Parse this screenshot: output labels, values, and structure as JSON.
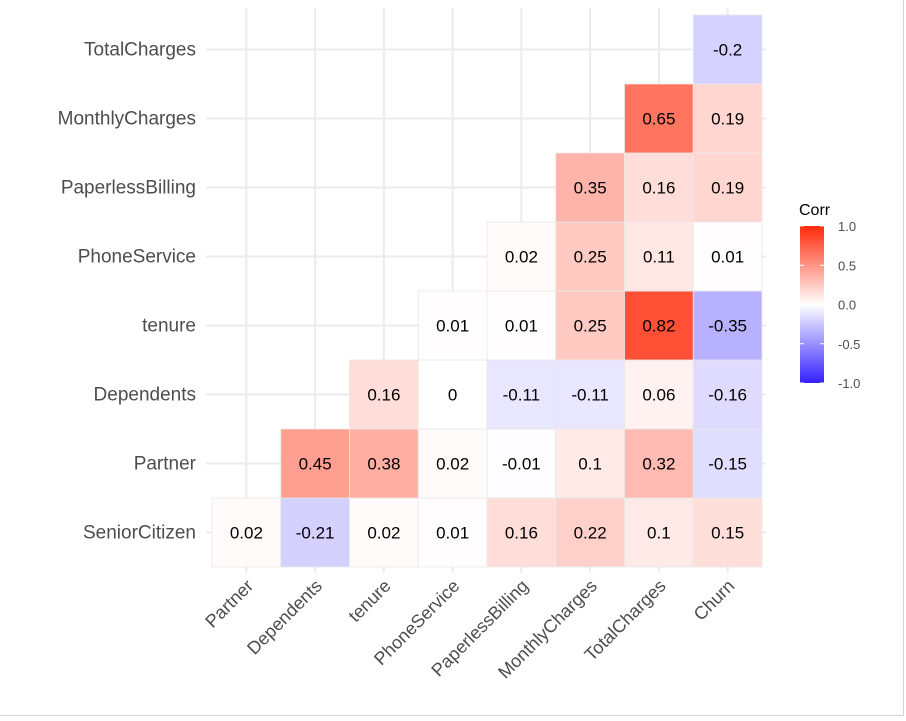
{
  "chart_data": {
    "type": "heatmap",
    "x_categories": [
      "Partner",
      "Dependents",
      "tenure",
      "PhoneService",
      "PaperlessBilling",
      "MonthlyCharges",
      "TotalCharges",
      "Churn"
    ],
    "y_categories": [
      "SeniorCitizen",
      "Partner",
      "Dependents",
      "tenure",
      "PhoneService",
      "PaperlessBilling",
      "MonthlyCharges",
      "TotalCharges"
    ],
    "cells": [
      {
        "x": "Partner",
        "y": "SeniorCitizen",
        "value": 0.02,
        "label": "0.02"
      },
      {
        "x": "Dependents",
        "y": "SeniorCitizen",
        "value": -0.21,
        "label": "-0.21"
      },
      {
        "x": "tenure",
        "y": "SeniorCitizen",
        "value": 0.02,
        "label": "0.02"
      },
      {
        "x": "PhoneService",
        "y": "SeniorCitizen",
        "value": 0.01,
        "label": "0.01"
      },
      {
        "x": "PaperlessBilling",
        "y": "SeniorCitizen",
        "value": 0.16,
        "label": "0.16"
      },
      {
        "x": "MonthlyCharges",
        "y": "SeniorCitizen",
        "value": 0.22,
        "label": "0.22"
      },
      {
        "x": "TotalCharges",
        "y": "SeniorCitizen",
        "value": 0.1,
        "label": "0.1"
      },
      {
        "x": "Churn",
        "y": "SeniorCitizen",
        "value": 0.15,
        "label": "0.15"
      },
      {
        "x": "Dependents",
        "y": "Partner",
        "value": 0.45,
        "label": "0.45"
      },
      {
        "x": "tenure",
        "y": "Partner",
        "value": 0.38,
        "label": "0.38"
      },
      {
        "x": "PhoneService",
        "y": "Partner",
        "value": 0.02,
        "label": "0.02"
      },
      {
        "x": "PaperlessBilling",
        "y": "Partner",
        "value": -0.01,
        "label": "-0.01"
      },
      {
        "x": "MonthlyCharges",
        "y": "Partner",
        "value": 0.1,
        "label": "0.1"
      },
      {
        "x": "TotalCharges",
        "y": "Partner",
        "value": 0.32,
        "label": "0.32"
      },
      {
        "x": "Churn",
        "y": "Partner",
        "value": -0.15,
        "label": "-0.15"
      },
      {
        "x": "tenure",
        "y": "Dependents",
        "value": 0.16,
        "label": "0.16"
      },
      {
        "x": "PhoneService",
        "y": "Dependents",
        "value": 0,
        "label": "0"
      },
      {
        "x": "PaperlessBilling",
        "y": "Dependents",
        "value": -0.11,
        "label": "-0.11"
      },
      {
        "x": "MonthlyCharges",
        "y": "Dependents",
        "value": -0.11,
        "label": "-0.11"
      },
      {
        "x": "TotalCharges",
        "y": "Dependents",
        "value": 0.06,
        "label": "0.06"
      },
      {
        "x": "Churn",
        "y": "Dependents",
        "value": -0.16,
        "label": "-0.16"
      },
      {
        "x": "PhoneService",
        "y": "tenure",
        "value": 0.01,
        "label": "0.01"
      },
      {
        "x": "PaperlessBilling",
        "y": "tenure",
        "value": 0.01,
        "label": "0.01"
      },
      {
        "x": "MonthlyCharges",
        "y": "tenure",
        "value": 0.25,
        "label": "0.25"
      },
      {
        "x": "TotalCharges",
        "y": "tenure",
        "value": 0.82,
        "label": "0.82"
      },
      {
        "x": "Churn",
        "y": "tenure",
        "value": -0.35,
        "label": "-0.35"
      },
      {
        "x": "PaperlessBilling",
        "y": "PhoneService",
        "value": 0.02,
        "label": "0.02"
      },
      {
        "x": "MonthlyCharges",
        "y": "PhoneService",
        "value": 0.25,
        "label": "0.25"
      },
      {
        "x": "TotalCharges",
        "y": "PhoneService",
        "value": 0.11,
        "label": "0.11"
      },
      {
        "x": "Churn",
        "y": "PhoneService",
        "value": 0.01,
        "label": "0.01"
      },
      {
        "x": "MonthlyCharges",
        "y": "PaperlessBilling",
        "value": 0.35,
        "label": "0.35"
      },
      {
        "x": "TotalCharges",
        "y": "PaperlessBilling",
        "value": 0.16,
        "label": "0.16"
      },
      {
        "x": "Churn",
        "y": "PaperlessBilling",
        "value": 0.19,
        "label": "0.19"
      },
      {
        "x": "TotalCharges",
        "y": "MonthlyCharges",
        "value": 0.65,
        "label": "0.65"
      },
      {
        "x": "Churn",
        "y": "MonthlyCharges",
        "value": 0.19,
        "label": "0.19"
      },
      {
        "x": "Churn",
        "y": "TotalCharges",
        "value": -0.2,
        "label": "-0.2"
      }
    ],
    "legend": {
      "title": "Corr",
      "range": [
        -1,
        1
      ],
      "ticks": [
        1.0,
        0.5,
        0.0,
        -0.5,
        -1.0
      ],
      "tick_labels": [
        "1.0",
        "0.5",
        "0.0",
        "-0.5",
        "-1.0"
      ],
      "placement": "right"
    },
    "colors": {
      "high": "#ff2a0a",
      "mid": "#ffffff",
      "low": "#3320ff"
    },
    "grid": true
  }
}
